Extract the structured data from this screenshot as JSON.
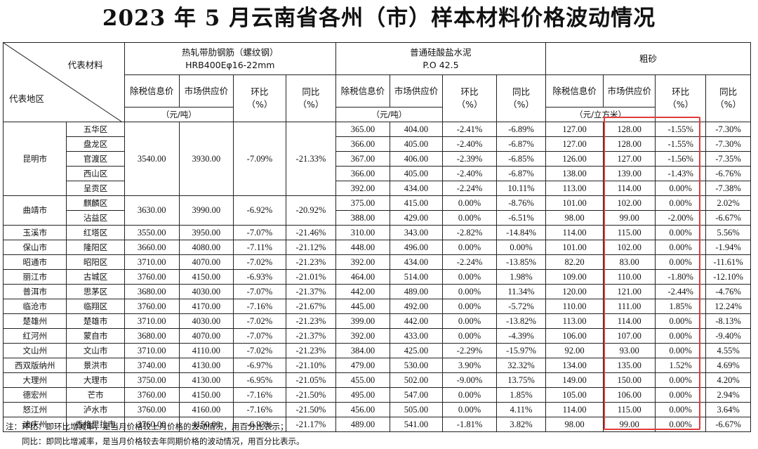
{
  "title": "2023 年 5 月云南省各州（市）样本材料价格波动情况",
  "corner": {
    "material_label": "代表材料",
    "region_label": "代表地区"
  },
  "groups": [
    {
      "name": "热轧带肋钢筋（螺纹钢）",
      "spec": "HRB400Eφ16-22mm",
      "unit": "（元/吨）"
    },
    {
      "name": "普通硅酸盐水泥",
      "spec": "P.O 42.5",
      "unit": "（元/吨）"
    },
    {
      "name": "粗砂",
      "spec": "",
      "unit": "（元/立方米）"
    }
  ],
  "cols": {
    "tax": "除税信息价",
    "market": "市场供应价",
    "mom": "环比",
    "yoy": "同比",
    "pct": "（%）"
  },
  "steel": [
    {
      "tax": "3540.00",
      "market": "3930.00",
      "mom": "-7.09%",
      "yoy": "-21.33%"
    },
    {
      "tax": "3630.00",
      "market": "3990.00",
      "mom": "-6.92%",
      "yoy": "-20.92%"
    },
    {
      "tax": "3550.00",
      "market": "3950.00",
      "mom": "-7.07%",
      "yoy": "-21.46%"
    },
    {
      "tax": "3660.00",
      "market": "4080.00",
      "mom": "-7.11%",
      "yoy": "-21.12%"
    },
    {
      "tax": "3710.00",
      "market": "4070.00",
      "mom": "-7.02%",
      "yoy": "-21.23%"
    },
    {
      "tax": "3760.00",
      "market": "4150.00",
      "mom": "-6.93%",
      "yoy": "-21.01%"
    },
    {
      "tax": "3680.00",
      "market": "4030.00",
      "mom": "-7.07%",
      "yoy": "-21.37%"
    },
    {
      "tax": "3760.00",
      "market": "4170.00",
      "mom": "-7.16%",
      "yoy": "-21.67%"
    },
    {
      "tax": "3710.00",
      "market": "4030.00",
      "mom": "-7.02%",
      "yoy": "-21.23%"
    },
    {
      "tax": "3680.00",
      "market": "4070.00",
      "mom": "-7.07%",
      "yoy": "-21.37%"
    },
    {
      "tax": "3710.00",
      "market": "4110.00",
      "mom": "-7.02%",
      "yoy": "-21.23%"
    },
    {
      "tax": "3740.00",
      "market": "4130.00",
      "mom": "-6.97%",
      "yoy": "-21.10%"
    },
    {
      "tax": "3750.00",
      "market": "4130.00",
      "mom": "-6.95%",
      "yoy": "-21.05%"
    },
    {
      "tax": "3760.00",
      "market": "4150.00",
      "mom": "-7.16%",
      "yoy": "-21.50%"
    },
    {
      "tax": "3760.00",
      "market": "4160.00",
      "mom": "-7.16%",
      "yoy": "-21.50%"
    },
    {
      "tax": "3760.00",
      "market": "4150.00",
      "mom": "-6.93%",
      "yoy": "-21.17%"
    }
  ],
  "rows": [
    {
      "city": "昆明市",
      "district": "五华区",
      "cement": [
        "365.00",
        "404.00",
        "-2.41%",
        "-6.89%"
      ],
      "sand": [
        "127.00",
        "128.00",
        "-1.55%",
        "-7.30%"
      ]
    },
    {
      "city": "",
      "district": "盘龙区",
      "cement": [
        "366.00",
        "405.00",
        "-2.40%",
        "-6.87%"
      ],
      "sand": [
        "127.00",
        "128.00",
        "-1.55%",
        "-7.30%"
      ]
    },
    {
      "city": "",
      "district": "官渡区",
      "cement": [
        "367.00",
        "406.00",
        "-2.39%",
        "-6.85%"
      ],
      "sand": [
        "126.00",
        "127.00",
        "-1.56%",
        "-7.35%"
      ]
    },
    {
      "city": "",
      "district": "西山区",
      "cement": [
        "366.00",
        "405.00",
        "-2.40%",
        "-6.87%"
      ],
      "sand": [
        "138.00",
        "139.00",
        "-1.43%",
        "-6.76%"
      ]
    },
    {
      "city": "",
      "district": "呈贡区",
      "cement": [
        "392.00",
        "434.00",
        "-2.24%",
        "10.11%"
      ],
      "sand": [
        "113.00",
        "114.00",
        "0.00%",
        "-7.38%"
      ]
    },
    {
      "city": "曲靖市",
      "district": "麒麟区",
      "cement": [
        "375.00",
        "415.00",
        "0.00%",
        "-8.76%"
      ],
      "sand": [
        "101.00",
        "102.00",
        "0.00%",
        "2.02%"
      ]
    },
    {
      "city": "",
      "district": "沾益区",
      "cement": [
        "388.00",
        "429.00",
        "0.00%",
        "-6.51%"
      ],
      "sand": [
        "98.00",
        "99.00",
        "-2.00%",
        "-6.67%"
      ]
    },
    {
      "city": "玉溪市",
      "district": "红塔区",
      "cement": [
        "310.00",
        "343.00",
        "-2.82%",
        "-14.84%"
      ],
      "sand": [
        "114.00",
        "115.00",
        "0.00%",
        "5.56%"
      ]
    },
    {
      "city": "保山市",
      "district": "隆阳区",
      "cement": [
        "448.00",
        "496.00",
        "0.00%",
        "0.00%"
      ],
      "sand": [
        "101.00",
        "102.00",
        "0.00%",
        "-1.94%"
      ]
    },
    {
      "city": "昭通市",
      "district": "昭阳区",
      "cement": [
        "392.00",
        "434.00",
        "-2.24%",
        "-13.85%"
      ],
      "sand": [
        "82.20",
        "83.00",
        "0.00%",
        "-11.61%"
      ]
    },
    {
      "city": "丽江市",
      "district": "古城区",
      "cement": [
        "464.00",
        "514.00",
        "0.00%",
        "1.98%"
      ],
      "sand": [
        "109.00",
        "110.00",
        "-1.80%",
        "-12.10%"
      ]
    },
    {
      "city": "普洱市",
      "district": "思茅区",
      "cement": [
        "442.00",
        "489.00",
        "0.00%",
        "11.34%"
      ],
      "sand": [
        "120.00",
        "121.00",
        "-2.44%",
        "-4.76%"
      ]
    },
    {
      "city": "临沧市",
      "district": "临翔区",
      "cement": [
        "445.00",
        "492.00",
        "0.00%",
        "-5.72%"
      ],
      "sand": [
        "110.00",
        "111.00",
        "1.85%",
        "12.24%"
      ]
    },
    {
      "city": "楚雄州",
      "district": "楚雄市",
      "cement": [
        "399.00",
        "442.00",
        "0.00%",
        "-13.82%"
      ],
      "sand": [
        "113.00",
        "114.00",
        "0.00%",
        "-8.13%"
      ]
    },
    {
      "city": "红河州",
      "district": "蒙自市",
      "cement": [
        "392.00",
        "433.00",
        "0.00%",
        "-4.39%"
      ],
      "sand": [
        "106.00",
        "107.00",
        "0.00%",
        "-9.40%"
      ]
    },
    {
      "city": "文山州",
      "district": "文山市",
      "cement": [
        "384.00",
        "425.00",
        "-2.29%",
        "-15.97%"
      ],
      "sand": [
        "92.00",
        "93.00",
        "0.00%",
        "4.55%"
      ]
    },
    {
      "city": "西双版纳州",
      "district": "景洪市",
      "cement": [
        "479.00",
        "530.00",
        "3.90%",
        "32.32%"
      ],
      "sand": [
        "134.00",
        "135.00",
        "1.52%",
        "4.69%"
      ]
    },
    {
      "city": "大理州",
      "district": "大理市",
      "cement": [
        "455.00",
        "502.00",
        "-9.00%",
        "13.75%"
      ],
      "sand": [
        "149.00",
        "150.00",
        "0.00%",
        "4.20%"
      ]
    },
    {
      "city": "德宏州",
      "district": "芒市",
      "cement": [
        "495.00",
        "547.00",
        "0.00%",
        "1.85%"
      ],
      "sand": [
        "105.00",
        "106.00",
        "0.00%",
        "2.94%"
      ]
    },
    {
      "city": "怒江州",
      "district": "泸水市",
      "cement": [
        "456.00",
        "505.00",
        "0.00%",
        "4.11%"
      ],
      "sand": [
        "114.00",
        "115.00",
        "0.00%",
        "3.64%"
      ]
    },
    {
      "city": "迪庆州",
      "district": "香格里拉市",
      "cement": [
        "489.00",
        "541.00",
        "-1.81%",
        "3.82%"
      ],
      "sand": [
        "98.00",
        "99.00",
        "0.00%",
        "-6.67%"
      ]
    }
  ],
  "notes": [
    "注：环比：即环比增减率，是当月价格较上月价格的波动情况，用百分比表示；",
    "　　同比：即同比增减率，是当月价格较去年同期价格的波动情况，用百分比表示。"
  ],
  "highlight_color": "#e23b3b"
}
